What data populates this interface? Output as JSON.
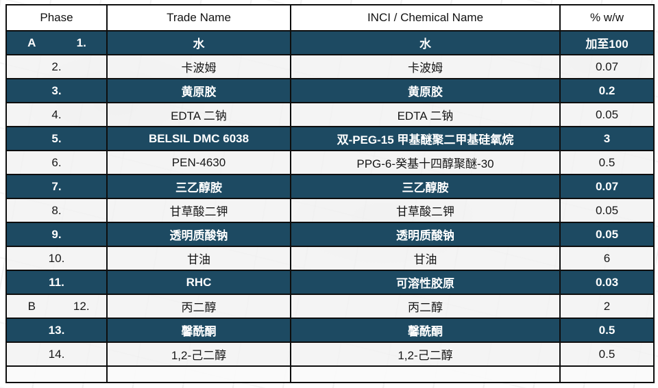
{
  "table": {
    "headers": {
      "phase": "Phase",
      "trade": "Trade Name",
      "inci": "INCI / Chemical Name",
      "pct": "% w/w"
    },
    "rows": [
      {
        "letter": "A",
        "num": "1.",
        "trade": "水",
        "inci": "水",
        "pct": "加至100"
      },
      {
        "letter": "",
        "num": "2.",
        "trade": "卡波姆",
        "inci": "卡波姆",
        "pct": "0.07"
      },
      {
        "letter": "",
        "num": "3.",
        "trade": "黄原胶",
        "inci": "黄原胶",
        "pct": "0.2"
      },
      {
        "letter": "",
        "num": "4.",
        "trade": "EDTA 二钠",
        "inci": "EDTA 二钠",
        "pct": "0.05"
      },
      {
        "letter": "",
        "num": "5.",
        "trade": "BELSIL DMC 6038",
        "inci": "双-PEG-15 甲基醚聚二甲基硅氧烷",
        "pct": "3"
      },
      {
        "letter": "",
        "num": "6.",
        "trade": "PEN-4630",
        "inci": "PPG-6-癸基十四醇聚醚-30",
        "pct": "0.5"
      },
      {
        "letter": "",
        "num": "7.",
        "trade": "三乙醇胺",
        "inci": "三乙醇胺",
        "pct": "0.07"
      },
      {
        "letter": "",
        "num": "8.",
        "trade": "甘草酸二钾",
        "inci": "甘草酸二钾",
        "pct": "0.05"
      },
      {
        "letter": "",
        "num": "9.",
        "trade": "透明质酸钠",
        "inci": "透明质酸钠",
        "pct": "0.05"
      },
      {
        "letter": "",
        "num": "10.",
        "trade": "甘油",
        "inci": "甘油",
        "pct": "6"
      },
      {
        "letter": "",
        "num": "11.",
        "trade": "RHC",
        "inci": "可溶性胶原",
        "pct": "0.03"
      },
      {
        "letter": "B",
        "num": "12.",
        "trade": "丙二醇",
        "inci": "丙二醇",
        "pct": "2"
      },
      {
        "letter": "",
        "num": "13.",
        "trade": "馨酰酮",
        "inci": "馨酰酮",
        "pct": "0.5"
      },
      {
        "letter": "",
        "num": "14.",
        "trade": "1,2-己二醇",
        "inci": "1,2-己二醇",
        "pct": "0.5"
      }
    ]
  },
  "colors": {
    "dark_row": "#1d4a62",
    "light_row": "#f2f1f1",
    "header_bg": "#ffffff",
    "border": "#0d0d0d",
    "dark_row_text": "#ffffff"
  }
}
